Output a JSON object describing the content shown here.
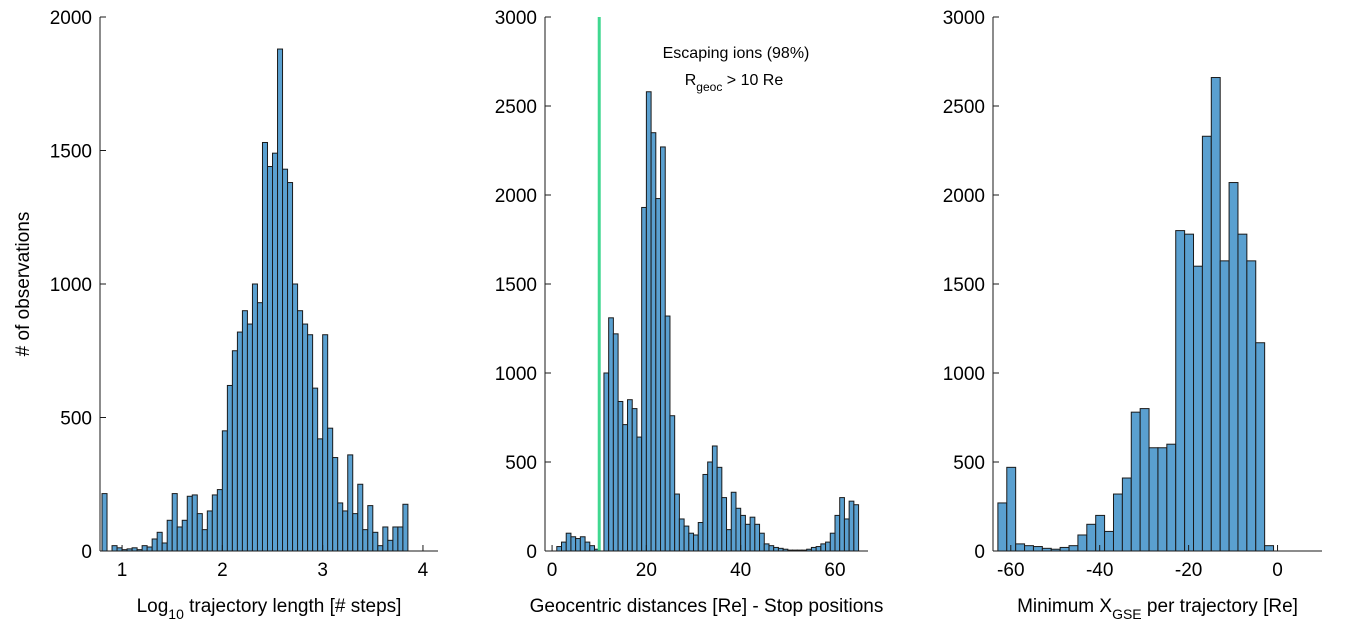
{
  "chart_data": [
    {
      "type": "bar",
      "subtype": "histogram",
      "xlabel_pre": "Log",
      "xlabel_sub": "10",
      "xlabel_post": " trajectory length [# steps]",
      "ylabel": "# of observations",
      "xlim": [
        0.78,
        4.15
      ],
      "ylim": [
        0,
        2000
      ],
      "xticks": [
        1,
        2,
        3,
        4
      ],
      "yticks": [
        0,
        500,
        1000,
        1500,
        2000
      ],
      "bin_start": 0.8,
      "bin_width": 0.05,
      "values": [
        215,
        0,
        20,
        12,
        5,
        8,
        12,
        5,
        20,
        15,
        45,
        70,
        30,
        115,
        215,
        90,
        115,
        205,
        210,
        140,
        80,
        150,
        210,
        230,
        450,
        620,
        750,
        820,
        900,
        850,
        1000,
        930,
        1530,
        1440,
        1490,
        1880,
        1430,
        1380,
        1000,
        900,
        850,
        810,
        610,
        420,
        810,
        460,
        350,
        180,
        150,
        360,
        140,
        250,
        80,
        170,
        70,
        20,
        90,
        40,
        90,
        90,
        175
      ]
    },
    {
      "type": "bar",
      "subtype": "histogram",
      "xlabel": "Geocentric distances [Re] - Stop positions",
      "xlim": [
        -1.5,
        67
      ],
      "ylim": [
        0,
        3000
      ],
      "xticks": [
        0,
        20,
        40,
        60
      ],
      "yticks": [
        0,
        500,
        1000,
        1500,
        2000,
        2500,
        3000
      ],
      "bin_start": 0,
      "bin_width": 1,
      "values": [
        0,
        25,
        50,
        100,
        80,
        70,
        80,
        50,
        30,
        10,
        0,
        1000,
        1310,
        1220,
        840,
        710,
        850,
        800,
        640,
        1930,
        2580,
        2350,
        1980,
        2270,
        1320,
        760,
        320,
        180,
        140,
        100,
        90,
        160,
        430,
        500,
        590,
        470,
        300,
        120,
        330,
        240,
        200,
        150,
        190,
        150,
        100,
        40,
        30,
        20,
        15,
        10,
        5,
        5,
        5,
        5,
        10,
        20,
        25,
        40,
        50,
        100,
        200,
        300,
        180,
        280,
        260
      ],
      "marker_line": {
        "x": 10,
        "color": "#40d890"
      },
      "annotation_line1": "Escaping ions (98%)",
      "annotation_r": "R",
      "annotation_sub": "geoc",
      "annotation_post": " > 10 Re"
    },
    {
      "type": "bar",
      "subtype": "histogram",
      "xlabel_pre": "Minimum X",
      "xlabel_sub": "GSE",
      "xlabel_post": " per trajectory [Re]",
      "xlim": [
        -64,
        10
      ],
      "ylim": [
        0,
        3000
      ],
      "xticks": [
        -60,
        -40,
        -20,
        0
      ],
      "yticks": [
        0,
        500,
        1000,
        1500,
        2000,
        2500,
        3000
      ],
      "bin_start": -62.9,
      "bin_width": 2.0,
      "values": [
        270,
        470,
        40,
        30,
        25,
        15,
        10,
        20,
        30,
        90,
        150,
        200,
        110,
        320,
        410,
        780,
        800,
        580,
        580,
        600,
        1800,
        1780,
        1600,
        2330,
        2660,
        1630,
        2070,
        1780,
        1630,
        1170,
        30
      ]
    }
  ],
  "colors": {
    "bar_fill": "#5aa0d0",
    "bar_edge": "#1a1a1a",
    "marker": "#40d890"
  }
}
